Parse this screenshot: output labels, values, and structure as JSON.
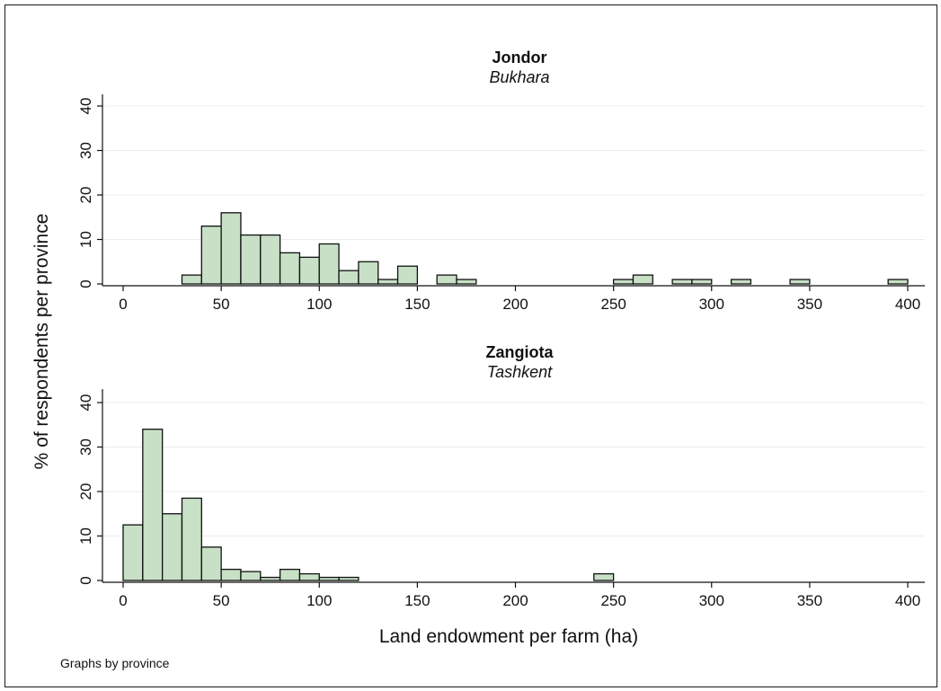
{
  "chart_data": {
    "type": "bar",
    "xlabel": "Land endowment per farm (ha)",
    "ylabel": "% of respondents per province",
    "note": "Graphs by province",
    "xlim": [
      0,
      400
    ],
    "ylim": [
      0,
      40
    ],
    "bin_width": 10,
    "xticks": [
      0,
      50,
      100,
      150,
      200,
      250,
      300,
      350,
      400
    ],
    "yticks": [
      0,
      10,
      20,
      30,
      40
    ],
    "grid": true,
    "bar_color": "#c7e0c6",
    "bar_edge_color": "#111111",
    "panels": [
      {
        "title": "Jondor",
        "subtitle": "Bukhara",
        "bins": [
          {
            "x": 30,
            "value": 2
          },
          {
            "x": 40,
            "value": 13
          },
          {
            "x": 50,
            "value": 16
          },
          {
            "x": 60,
            "value": 11
          },
          {
            "x": 70,
            "value": 11
          },
          {
            "x": 80,
            "value": 7
          },
          {
            "x": 90,
            "value": 6
          },
          {
            "x": 100,
            "value": 9
          },
          {
            "x": 110,
            "value": 3
          },
          {
            "x": 120,
            "value": 5
          },
          {
            "x": 130,
            "value": 1
          },
          {
            "x": 140,
            "value": 4
          },
          {
            "x": 160,
            "value": 2
          },
          {
            "x": 170,
            "value": 1
          },
          {
            "x": 250,
            "value": 1
          },
          {
            "x": 260,
            "value": 2
          },
          {
            "x": 280,
            "value": 1
          },
          {
            "x": 290,
            "value": 1
          },
          {
            "x": 310,
            "value": 1
          },
          {
            "x": 340,
            "value": 1
          },
          {
            "x": 390,
            "value": 1
          }
        ]
      },
      {
        "title": "Zangiota",
        "subtitle": "Tashkent",
        "bins": [
          {
            "x": 0,
            "value": 12.5
          },
          {
            "x": 10,
            "value": 34
          },
          {
            "x": 20,
            "value": 15
          },
          {
            "x": 30,
            "value": 18.5
          },
          {
            "x": 40,
            "value": 7.5
          },
          {
            "x": 50,
            "value": 2.5
          },
          {
            "x": 60,
            "value": 2
          },
          {
            "x": 70,
            "value": 0.7
          },
          {
            "x": 80,
            "value": 2.5
          },
          {
            "x": 90,
            "value": 1.5
          },
          {
            "x": 100,
            "value": 0.7
          },
          {
            "x": 110,
            "value": 0.7
          },
          {
            "x": 240,
            "value": 1.5
          }
        ]
      }
    ]
  }
}
